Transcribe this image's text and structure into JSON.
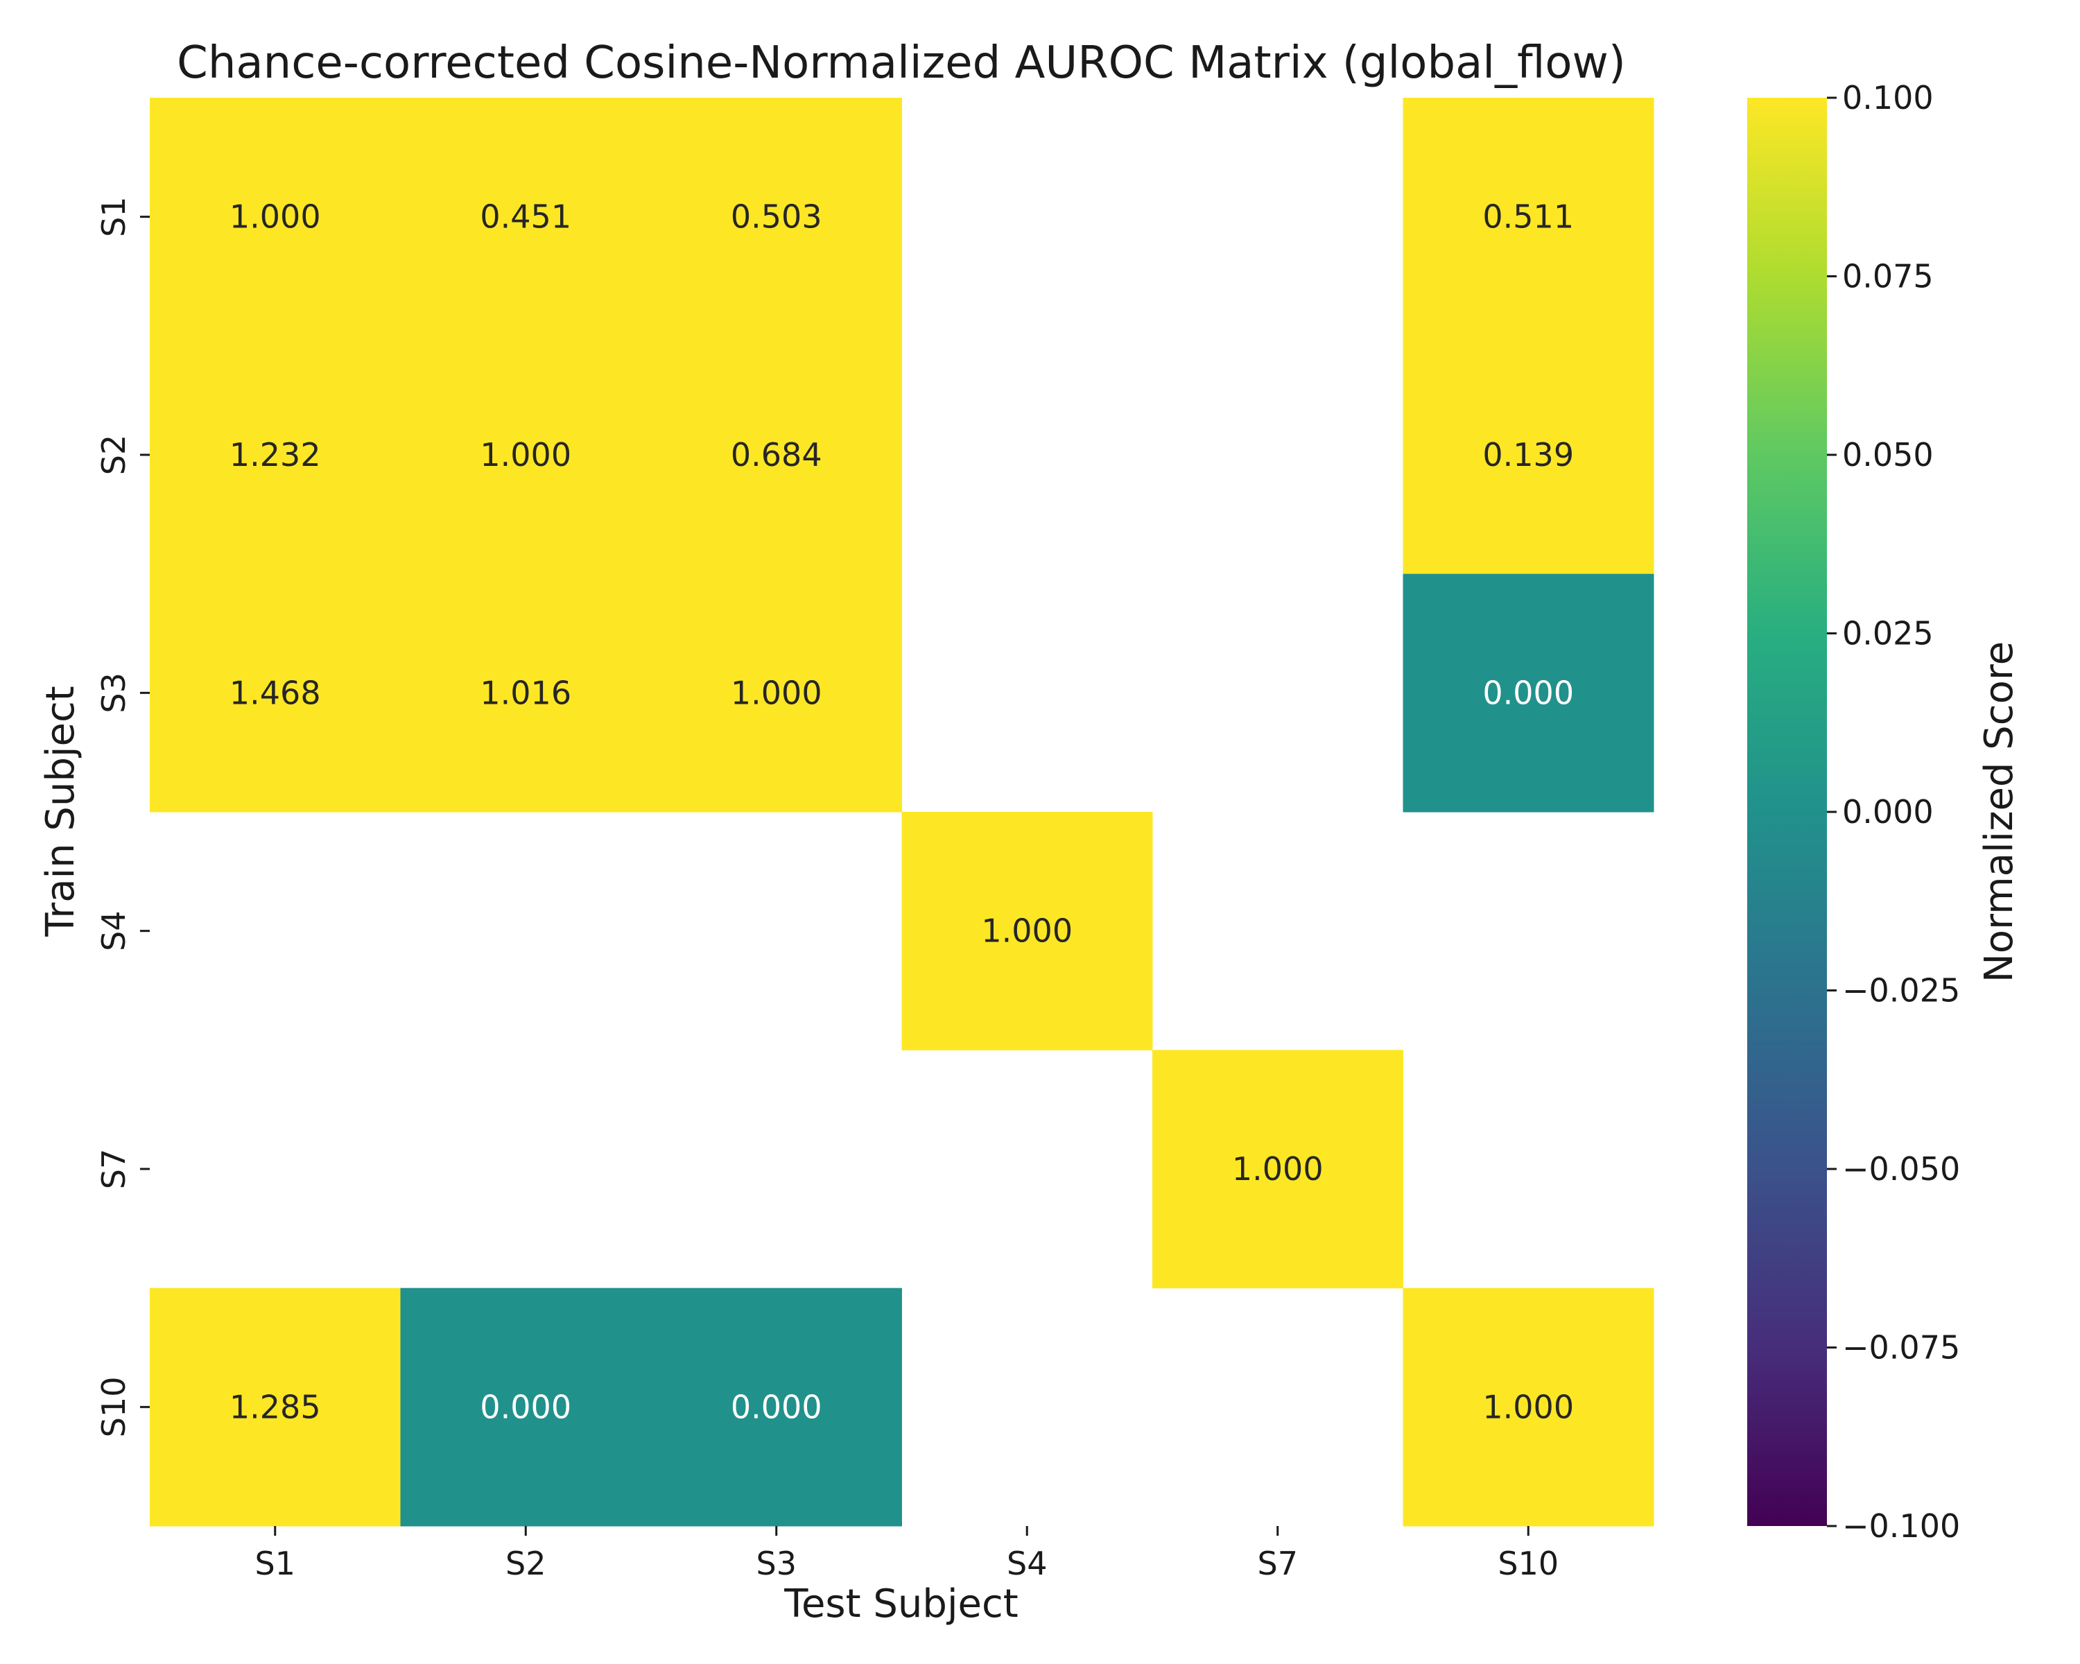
{
  "chart_data": {
    "type": "heatmap",
    "title": "Chance-corrected Cosine-Normalized AUROC Matrix (global_flow)",
    "xlabel": "Test Subject",
    "ylabel": "Train Subject",
    "x_categories": [
      "S1",
      "S2",
      "S3",
      "S4",
      "S7",
      "S10"
    ],
    "y_categories": [
      "S1",
      "S2",
      "S3",
      "S4",
      "S7",
      "S10"
    ],
    "values": [
      [
        1.0,
        0.451,
        0.503,
        null,
        null,
        0.511
      ],
      [
        1.232,
        1.0,
        0.684,
        null,
        null,
        0.139
      ],
      [
        1.468,
        1.016,
        1.0,
        null,
        null,
        0.0
      ],
      [
        null,
        null,
        null,
        1.0,
        null,
        null
      ],
      [
        null,
        null,
        null,
        null,
        1.0,
        null
      ],
      [
        1.285,
        0.0,
        0.0,
        null,
        null,
        1.0
      ]
    ],
    "value_format": "0.000",
    "colormap": "viridis",
    "colorbar": {
      "label": "Normalized Score",
      "range": [
        -0.1,
        0.1
      ],
      "ticks": [
        "0.100",
        "0.075",
        "0.050",
        "0.025",
        "0.000",
        "−0.025",
        "−0.050",
        "−0.075",
        "−0.100"
      ],
      "tick_values": [
        0.1,
        0.075,
        0.05,
        0.025,
        0.0,
        -0.025,
        -0.05,
        -0.075,
        -0.1
      ]
    },
    "grid": false
  }
}
